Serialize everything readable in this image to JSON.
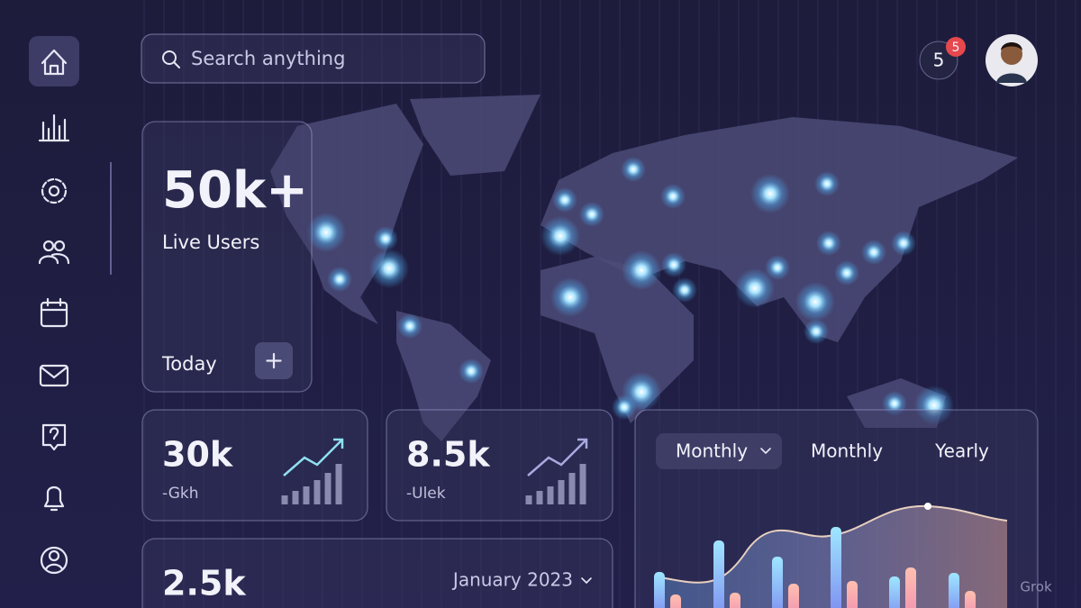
{
  "search": {
    "placeholder": "Search anything"
  },
  "header": {
    "notifications": "5",
    "badge": "5"
  },
  "live_users": {
    "value": "50k+",
    "label": "Live Users",
    "period": "Today"
  },
  "stats": [
    {
      "value": "30k",
      "label": "-Gkh"
    },
    {
      "value": "8.5k",
      "label": "-Ulek"
    }
  ],
  "summary": {
    "value": "2.5k",
    "period": "January 2023"
  },
  "activity": {
    "tabs": [
      "Monthly",
      "Monthly",
      "Yearly"
    ]
  },
  "watermark": "Grok"
}
